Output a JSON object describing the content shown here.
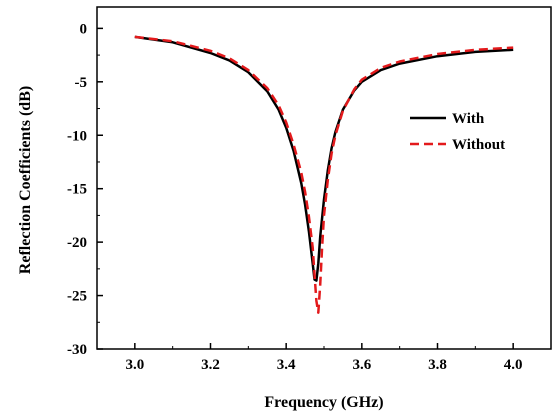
{
  "chart_data": {
    "type": "line",
    "title": "",
    "xlabel": "Frequency (GHz)",
    "ylabel": "Reflection Coefficients (dB)",
    "xlim": [
      2.9,
      4.1
    ],
    "ylim": [
      -30,
      2
    ],
    "xticks": [
      3.0,
      3.2,
      3.4,
      3.6,
      3.8,
      4.0
    ],
    "xtick_labels": [
      "3.0",
      "3.2",
      "3.4",
      "3.6",
      "3.8",
      "4.0"
    ],
    "yticks": [
      0,
      -5,
      -10,
      -15,
      -20,
      -25,
      -30
    ],
    "ytick_labels": [
      "0",
      "-5",
      "-10",
      "-15",
      "-20",
      "-25",
      "-30"
    ],
    "grid": false,
    "legend_position": "right",
    "series": [
      {
        "name": "With",
        "color": "#000000",
        "line_style": "solid",
        "x": [
          3.0,
          3.1,
          3.2,
          3.25,
          3.3,
          3.35,
          3.38,
          3.4,
          3.42,
          3.44,
          3.45,
          3.46,
          3.47,
          3.475,
          3.48,
          3.485,
          3.49,
          3.5,
          3.51,
          3.52,
          3.53,
          3.55,
          3.58,
          3.6,
          3.65,
          3.7,
          3.8,
          3.9,
          4.0
        ],
        "y": [
          -0.8,
          -1.3,
          -2.3,
          -3.0,
          -4.1,
          -5.9,
          -7.6,
          -9.3,
          -11.5,
          -14.5,
          -16.5,
          -19.0,
          -22.0,
          -23.5,
          -23.6,
          -22.0,
          -19.5,
          -16.0,
          -13.3,
          -11.2,
          -9.7,
          -7.6,
          -5.8,
          -5.0,
          -3.9,
          -3.3,
          -2.6,
          -2.2,
          -2.0
        ]
      },
      {
        "name": "Without",
        "color": "#e31a1c",
        "line_style": "dashed",
        "x": [
          3.0,
          3.1,
          3.2,
          3.25,
          3.3,
          3.35,
          3.38,
          3.4,
          3.42,
          3.44,
          3.45,
          3.46,
          3.47,
          3.475,
          3.48,
          3.485,
          3.49,
          3.495,
          3.5,
          3.51,
          3.52,
          3.53,
          3.55,
          3.58,
          3.6,
          3.65,
          3.7,
          3.8,
          3.9,
          4.0
        ],
        "y": [
          -0.8,
          -1.2,
          -2.1,
          -2.8,
          -3.9,
          -5.6,
          -7.2,
          -8.8,
          -10.9,
          -13.5,
          -15.3,
          -17.6,
          -20.5,
          -23.0,
          -25.5,
          -26.6,
          -24.0,
          -20.5,
          -17.5,
          -14.2,
          -11.7,
          -10.0,
          -7.7,
          -5.7,
          -4.8,
          -3.7,
          -3.1,
          -2.4,
          -2.0,
          -1.8
        ]
      }
    ]
  }
}
